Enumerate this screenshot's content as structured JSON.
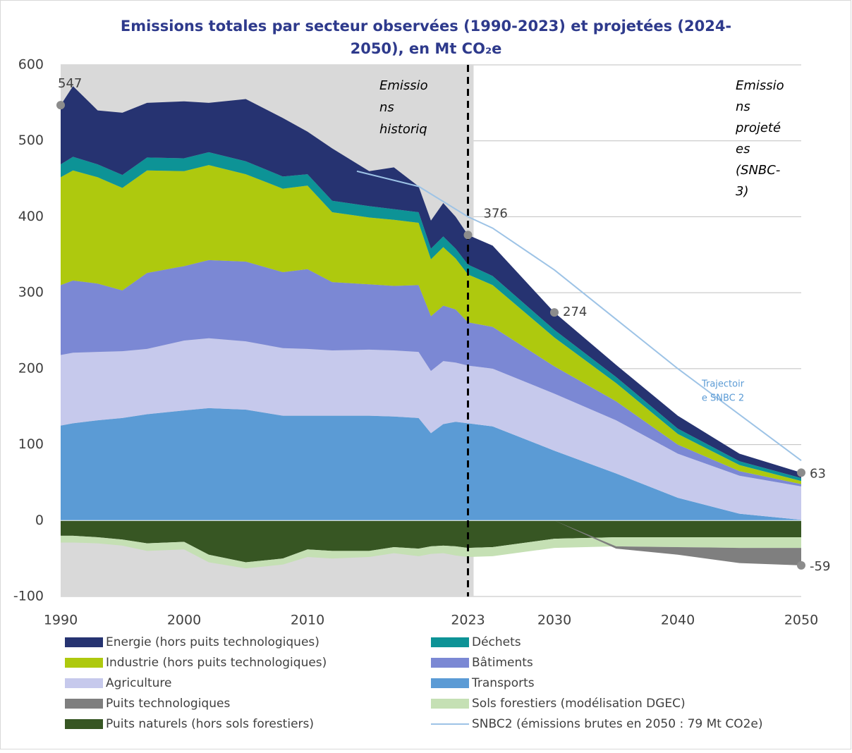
{
  "chart_data": {
    "type": "stacked_area",
    "title": [
      "Emissions totales par secteur observées (1990-2023) et projetées (2024-",
      "2050), en Mt CO₂e"
    ],
    "x": [
      1990,
      1991,
      1993,
      1995,
      1997,
      2000,
      2002,
      2005,
      2008,
      2010,
      2012,
      2015,
      2017,
      2019,
      2020,
      2021,
      2022,
      2023,
      2025,
      2030,
      2035,
      2040,
      2045,
      2050
    ],
    "xlim": [
      1990,
      2050
    ],
    "xticks": [
      1990,
      2000,
      2010,
      2023,
      2030,
      2040,
      2050
    ],
    "ylim": [
      -100,
      600
    ],
    "yticks": [
      -100,
      0,
      100,
      200,
      300,
      400,
      500,
      600
    ],
    "grid": true,
    "shaded_xlim": [
      1990,
      2023
    ],
    "vline": 2023,
    "historical_label": [
      "Emissio",
      "ns",
      "historiq"
    ],
    "projected_label": [
      "Emissio",
      "ns",
      "projeté",
      "es",
      "(SNBC-",
      "3)"
    ],
    "series": [
      {
        "name": "Energie (hors puits technologiques)",
        "color": "#263371",
        "values": [
          78,
          93,
          71,
          82,
          72,
          75,
          65,
          82,
          77,
          56,
          69,
          46,
          55,
          34,
          37,
          44,
          42,
          39,
          40,
          23,
          16,
          17,
          10,
          7
        ]
      },
      {
        "name": "Déchets",
        "color": "#0d9396",
        "values": [
          17,
          18,
          17,
          17,
          17,
          17,
          17,
          17,
          16,
          15,
          15,
          15,
          14,
          14,
          14,
          14,
          13,
          13,
          12,
          10,
          8,
          7,
          5,
          4
        ]
      },
      {
        "name": "Industrie (hors puits technologiques)",
        "color": "#aec90e",
        "values": [
          142,
          145,
          140,
          135,
          135,
          125,
          125,
          115,
          110,
          110,
          92,
          88,
          87,
          82,
          75,
          77,
          67,
          63,
          55,
          38,
          24,
          14,
          8,
          4
        ]
      },
      {
        "name": "Bâtiments",
        "color": "#7b88d4",
        "values": [
          92,
          95,
          90,
          80,
          100,
          98,
          103,
          105,
          100,
          105,
          90,
          86,
          85,
          88,
          72,
          73,
          70,
          57,
          55,
          36,
          25,
          12,
          6,
          3
        ]
      },
      {
        "name": "Agriculture",
        "color": "#c6c9ec",
        "values": [
          93,
          93,
          90,
          88,
          86,
          92,
          92,
          90,
          89,
          88,
          86,
          87,
          87,
          87,
          82,
          83,
          78,
          76,
          76,
          75,
          70,
          58,
          50,
          44
        ]
      },
      {
        "name": "Transports",
        "color": "#5b9bd5",
        "values": [
          125,
          128,
          132,
          135,
          140,
          145,
          148,
          146,
          138,
          138,
          138,
          138,
          137,
          135,
          115,
          127,
          130,
          128,
          124,
          92,
          62,
          30,
          9,
          1
        ]
      },
      {
        "name": "Puits technologiques",
        "color": "#7f7f7f",
        "values": [
          0,
          0,
          0,
          0,
          0,
          0,
          0,
          0,
          0,
          0,
          0,
          0,
          0,
          0,
          0,
          0,
          0,
          0,
          0,
          0,
          -3,
          -10,
          -20,
          -23
        ]
      },
      {
        "name": "Sols forestiers (modélisation DGEC)",
        "color": "#c5e0b4",
        "values": [
          -9,
          -9,
          -8,
          -8,
          -10,
          -10,
          -10,
          -8,
          -8,
          -10,
          -10,
          -8,
          -8,
          -10,
          -10,
          -10,
          -12,
          -12,
          -12,
          -12,
          -12,
          -13,
          -14,
          -14
        ]
      },
      {
        "name": "Puits naturels (hors sols forestiers)",
        "color": "#375623",
        "values": [
          -20,
          -20,
          -22,
          -25,
          -30,
          -28,
          -45,
          -55,
          -50,
          -38,
          -40,
          -40,
          -35,
          -37,
          -34,
          -33,
          -34,
          -36,
          -35,
          -24,
          -22,
          -22,
          -22,
          -22
        ]
      }
    ],
    "snbc2": {
      "name": "SNBC2 (émissions brutes en 2050 : 79 Mt CO2e)",
      "color": "#9dc3e6",
      "label": [
        "Trajectoir",
        "e SNBC 2"
      ],
      "x": [
        2014,
        2019,
        2023,
        2025,
        2030,
        2040,
        2050
      ],
      "values": [
        460,
        440,
        400,
        385,
        330,
        200,
        79
      ]
    },
    "annotations": [
      {
        "x": 1990,
        "y": 547
      },
      {
        "x": 2023,
        "y": 376
      },
      {
        "x": 2030,
        "y": 274
      },
      {
        "x": 2050,
        "y": 63
      },
      {
        "x": 2050,
        "y": -59
      }
    ]
  }
}
